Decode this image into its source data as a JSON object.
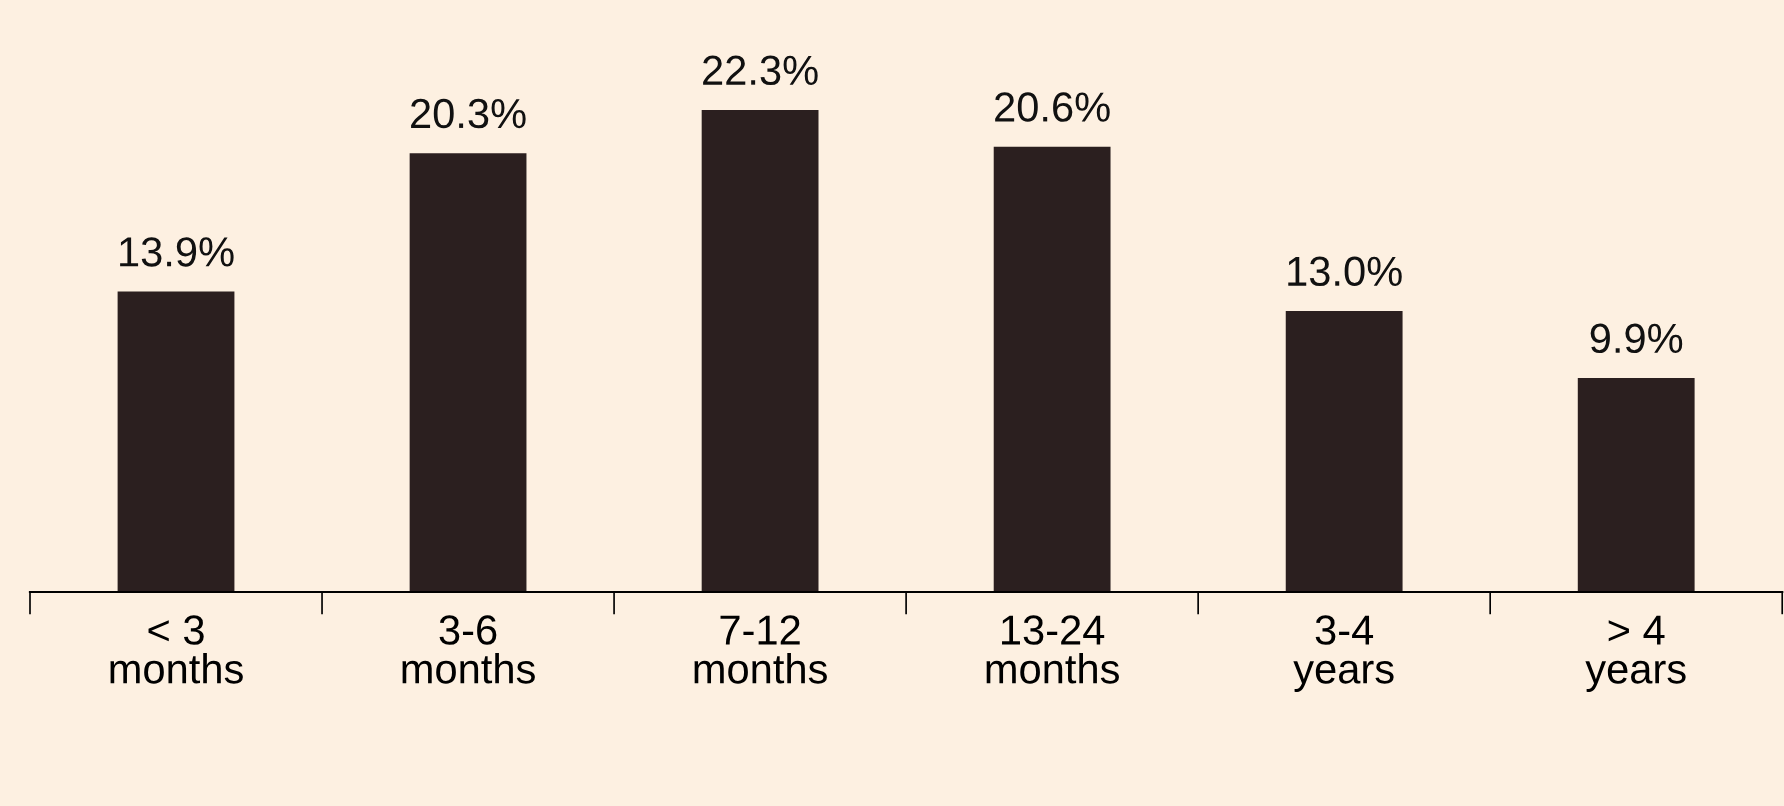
{
  "chart_data": {
    "type": "bar",
    "categories": [
      "< 3\nmonths",
      "3-6\nmonths",
      "7-12\nmonths",
      "13-24\nmonths",
      "3-4\nyears",
      "> 4\nyears"
    ],
    "values": [
      13.9,
      20.3,
      22.3,
      20.6,
      13.0,
      9.9
    ],
    "value_labels": [
      "13.9%",
      "20.3%",
      "22.3%",
      "20.6%",
      "13.0%",
      "9.9%"
    ],
    "color": "#2b1f1f",
    "grid": false,
    "legend": false,
    "tick_labels": "x"
  }
}
